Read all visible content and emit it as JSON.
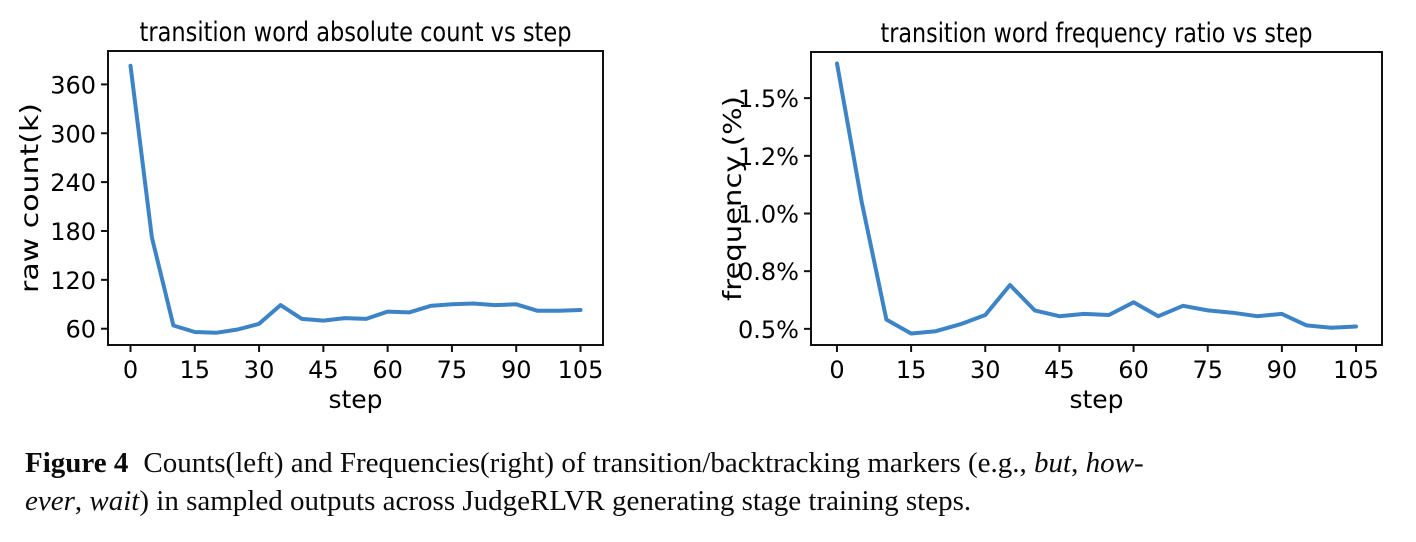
{
  "figure": {
    "caption": {
      "label": "Figure 4",
      "lines": [
        {
          "segments": [
            {
              "t": "Figure 4",
              "b": true
            },
            {
              "t": "Counts(left) and Frequencies(right) of transition/backtracking markers (e.g., "
            },
            {
              "t": "but",
              "i": true
            },
            {
              "t": ", "
            },
            {
              "t": "how-",
              "i": true
            }
          ]
        },
        {
          "segments": [
            {
              "t": "ever",
              "i": true
            },
            {
              "t": ", "
            },
            {
              "t": "wait",
              "i": true
            },
            {
              "t": ") in sampled outputs across JudgeRLVR generating stage training steps."
            }
          ]
        }
      ]
    }
  },
  "chart_data": [
    {
      "type": "line",
      "title": "transition word absolute count vs step",
      "xlabel": "step",
      "ylabel": "raw count(k)",
      "x": [
        0,
        5,
        10,
        15,
        20,
        25,
        30,
        35,
        40,
        45,
        50,
        55,
        60,
        65,
        70,
        75,
        80,
        85,
        90,
        95,
        100,
        105
      ],
      "y": [
        383,
        172,
        64,
        56,
        55,
        59,
        66,
        89,
        72,
        70,
        73,
        72,
        81,
        80,
        88,
        90,
        91,
        89,
        90,
        82,
        82,
        83
      ],
      "xticks": [
        0,
        15,
        30,
        45,
        60,
        75,
        90,
        105
      ],
      "ytick_values": [
        60,
        120,
        180,
        240,
        300,
        360
      ],
      "ytick_labels": [
        "60",
        "120",
        "180",
        "240",
        "300",
        "360"
      ],
      "xlim": [
        -5.25,
        110.25
      ],
      "ylim": [
        40,
        401
      ],
      "line_color": "#3d84c6",
      "grid": false,
      "legend": "none"
    },
    {
      "type": "line",
      "title": "transition word frequency ratio vs step",
      "xlabel": "step",
      "ylabel": "frequency (%)",
      "x": [
        0,
        5,
        10,
        15,
        20,
        25,
        30,
        35,
        40,
        45,
        50,
        55,
        60,
        65,
        70,
        75,
        80,
        85,
        90,
        95,
        100,
        105
      ],
      "y": [
        1.65,
        1.05,
        0.54,
        0.48,
        0.49,
        0.52,
        0.56,
        0.69,
        0.58,
        0.555,
        0.565,
        0.56,
        0.615,
        0.555,
        0.6,
        0.58,
        0.57,
        0.555,
        0.565,
        0.515,
        0.505,
        0.51
      ],
      "xticks": [
        0,
        15,
        30,
        45,
        60,
        75,
        90,
        105
      ],
      "ytick_values": [
        0.5,
        0.75,
        1.0,
        1.25,
        1.5
      ],
      "ytick_labels": [
        "0.5%",
        "0.8%",
        "1.0%",
        "1.2%",
        "1.5%"
      ],
      "xlim": [
        -5.25,
        110.25
      ],
      "ylim": [
        0.43,
        1.7
      ],
      "line_color": "#3d84c6",
      "grid": false,
      "legend": "none"
    }
  ]
}
